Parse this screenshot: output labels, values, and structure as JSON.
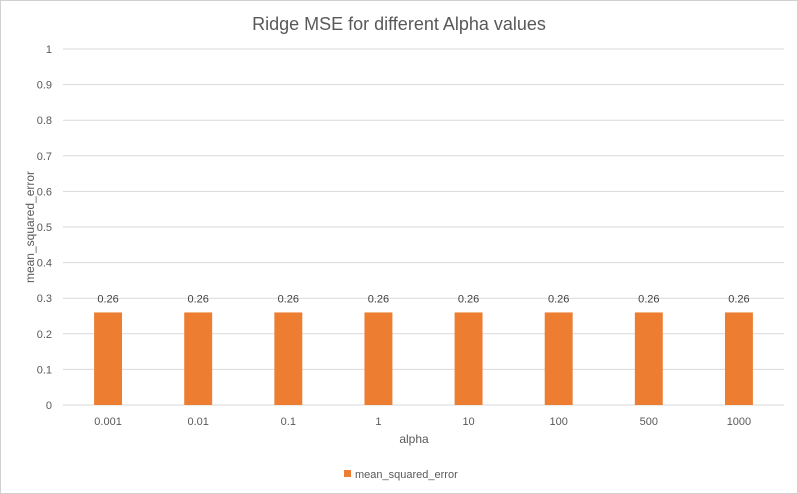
{
  "chart_data": {
    "type": "bar",
    "title": "Ridge MSE for different Alpha  values",
    "xlabel": "alpha",
    "ylabel": "mean_squared_error",
    "categories": [
      "0.001",
      "0.01",
      "0.1",
      "1",
      "10",
      "100",
      "500",
      "1000"
    ],
    "series": [
      {
        "name": "mean_squared_error",
        "values": [
          0.26,
          0.26,
          0.26,
          0.26,
          0.26,
          0.26,
          0.26,
          0.26
        ],
        "labels": [
          "0.26",
          "0.26",
          "0.26",
          "0.26",
          "0.26",
          "0.26",
          "0.26",
          "0.26"
        ],
        "color": "#ED7D31"
      }
    ],
    "ylim": [
      0,
      1
    ],
    "yticks": [
      "0",
      "0.1",
      "0.2",
      "0.3",
      "0.4",
      "0.5",
      "0.6",
      "0.7",
      "0.8",
      "0.9",
      "1"
    ],
    "grid": true,
    "legend_position": "bottom",
    "colors": {
      "gridline": "#d9d9d9",
      "text": "#595959"
    }
  }
}
